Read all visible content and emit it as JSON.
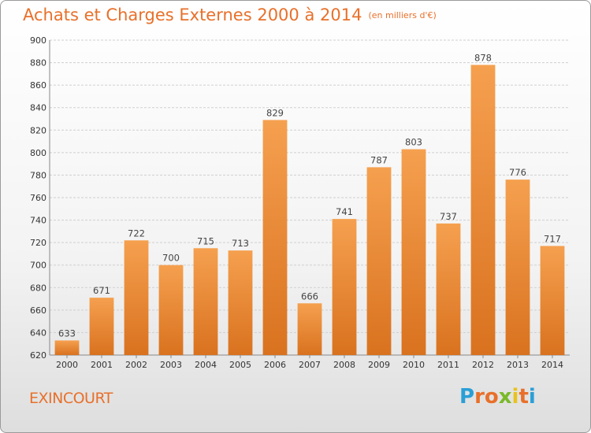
{
  "chart_data": {
    "type": "bar",
    "title": "Achats et Charges Externes 2000 à 2014",
    "subtitle": "(en milliers d'€)",
    "categories": [
      "2000",
      "2001",
      "2002",
      "2003",
      "2004",
      "2005",
      "2006",
      "2007",
      "2008",
      "2009",
      "2010",
      "2011",
      "2012",
      "2013",
      "2014"
    ],
    "values": [
      633,
      671,
      722,
      700,
      715,
      713,
      829,
      666,
      741,
      787,
      803,
      737,
      878,
      776,
      717
    ],
    "ylim": [
      620,
      900
    ],
    "yticks": [
      620,
      640,
      660,
      680,
      700,
      720,
      740,
      760,
      780,
      800,
      820,
      840,
      860,
      880,
      900
    ],
    "grid": true,
    "bar_color": "#f0913f",
    "bar_color_dark": "#d9721f"
  },
  "footer": {
    "commune": "EXINCOURT",
    "logo_letters": [
      "P",
      "r",
      "o",
      "x",
      "i",
      "t",
      "i"
    ],
    "logo_colors": [
      "#2a9fd6",
      "#e8702a",
      "#e8702a",
      "#7ab929",
      "#e8c31c",
      "#e8702a",
      "#2a9fd6"
    ]
  }
}
